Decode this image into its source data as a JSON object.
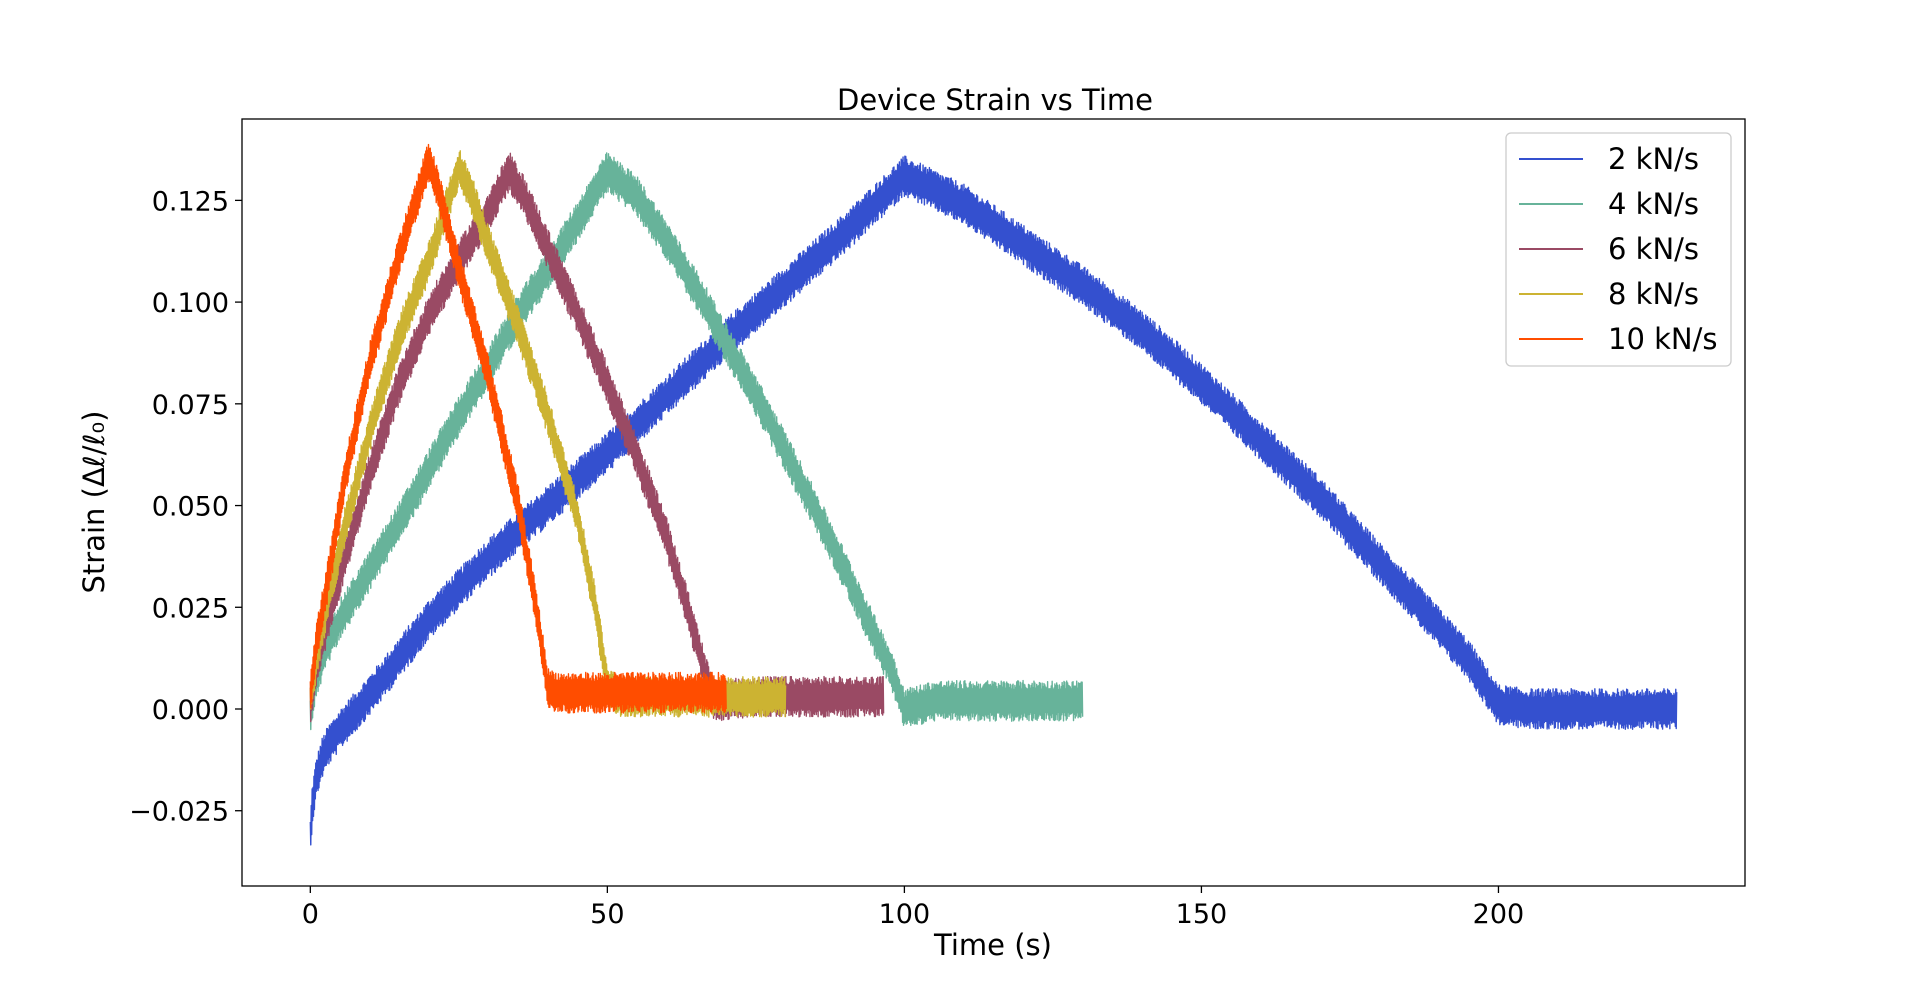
{
  "chart_data": {
    "type": "line",
    "title": "Device Strain vs Time",
    "xlabel": "Time (s)",
    "ylabel": "Strain (Δℓ/ℓ₀)",
    "xlim": [
      -11.5,
      241.5
    ],
    "ylim": [
      -0.0435,
      0.145
    ],
    "xticks": [
      0,
      50,
      100,
      150,
      200
    ],
    "xtick_labels": [
      "0",
      "50",
      "100",
      "150",
      "200"
    ],
    "yticks": [
      -0.025,
      0.0,
      0.025,
      0.05,
      0.075,
      0.1,
      0.125
    ],
    "ytick_labels": [
      "−0.025",
      "0.000",
      "0.025",
      "0.050",
      "0.075",
      "0.100",
      "0.125"
    ],
    "grid": false,
    "legend_position": "top-right",
    "noise_band": 0.005,
    "series": [
      {
        "name": "2 kN/s",
        "color": "#3450cf",
        "points": [
          [
            0,
            -0.032
          ],
          [
            0.3,
            -0.024
          ],
          [
            1,
            -0.017
          ],
          [
            2,
            -0.012
          ],
          [
            3,
            -0.009
          ],
          [
            5,
            -0.005
          ],
          [
            8,
            0.0
          ],
          [
            12,
            0.007
          ],
          [
            20,
            0.022
          ],
          [
            30,
            0.037
          ],
          [
            40,
            0.05
          ],
          [
            50,
            0.063
          ],
          [
            60,
            0.077
          ],
          [
            70,
            0.091
          ],
          [
            80,
            0.104
          ],
          [
            90,
            0.117
          ],
          [
            100,
            0.131
          ],
          [
            110,
            0.124
          ],
          [
            120,
            0.114
          ],
          [
            130,
            0.104
          ],
          [
            140,
            0.093
          ],
          [
            150,
            0.08
          ],
          [
            160,
            0.066
          ],
          [
            170,
            0.052
          ],
          [
            180,
            0.036
          ],
          [
            190,
            0.02
          ],
          [
            195,
            0.012
          ],
          [
            200,
            0.001
          ],
          [
            205,
            0.0
          ],
          [
            215,
            0.0
          ],
          [
            230,
            0.0
          ]
        ]
      },
      {
        "name": "4 kN/s",
        "color": "#67b39a",
        "points": [
          [
            0,
            -0.002
          ],
          [
            1,
            0.008
          ],
          [
            3,
            0.016
          ],
          [
            5,
            0.022
          ],
          [
            10,
            0.034
          ],
          [
            15,
            0.046
          ],
          [
            20,
            0.059
          ],
          [
            25,
            0.072
          ],
          [
            30,
            0.084
          ],
          [
            35,
            0.097
          ],
          [
            40,
            0.108
          ],
          [
            45,
            0.12
          ],
          [
            50,
            0.132
          ],
          [
            55,
            0.126
          ],
          [
            60,
            0.115
          ],
          [
            65,
            0.103
          ],
          [
            70,
            0.09
          ],
          [
            75,
            0.077
          ],
          [
            80,
            0.063
          ],
          [
            85,
            0.049
          ],
          [
            90,
            0.034
          ],
          [
            95,
            0.018
          ],
          [
            98,
            0.009
          ],
          [
            100,
            0.0
          ],
          [
            105,
            0.002
          ],
          [
            115,
            0.002
          ],
          [
            130,
            0.002
          ]
        ]
      },
      {
        "name": "6 kN/s",
        "color": "#9a4a64",
        "points": [
          [
            0,
            0.001
          ],
          [
            1,
            0.01
          ],
          [
            3,
            0.022
          ],
          [
            6,
            0.038
          ],
          [
            10,
            0.058
          ],
          [
            15,
            0.08
          ],
          [
            20,
            0.097
          ],
          [
            25,
            0.11
          ],
          [
            30,
            0.122
          ],
          [
            33.5,
            0.132
          ],
          [
            36,
            0.126
          ],
          [
            40,
            0.113
          ],
          [
            45,
            0.097
          ],
          [
            50,
            0.08
          ],
          [
            55,
            0.062
          ],
          [
            60,
            0.042
          ],
          [
            64,
            0.022
          ],
          [
            67,
            0.006
          ],
          [
            68,
            0.002
          ],
          [
            75,
            0.003
          ],
          [
            85,
            0.003
          ],
          [
            96.5,
            0.003
          ]
        ]
      },
      {
        "name": "8 kN/s",
        "color": "#ccb332",
        "points": [
          [
            0,
            0.002
          ],
          [
            1,
            0.012
          ],
          [
            3,
            0.027
          ],
          [
            5,
            0.04
          ],
          [
            10,
            0.068
          ],
          [
            15,
            0.092
          ],
          [
            20,
            0.11
          ],
          [
            25,
            0.133
          ],
          [
            27,
            0.127
          ],
          [
            30,
            0.114
          ],
          [
            35,
            0.094
          ],
          [
            40,
            0.072
          ],
          [
            45,
            0.047
          ],
          [
            48,
            0.025
          ],
          [
            50,
            0.006
          ],
          [
            52,
            0.003
          ],
          [
            60,
            0.003
          ],
          [
            70,
            0.003
          ],
          [
            80,
            0.003
          ]
        ]
      },
      {
        "name": "10 kN/s",
        "color": "#ff4d00",
        "points": [
          [
            0,
            0.003
          ],
          [
            1,
            0.016
          ],
          [
            3,
            0.032
          ],
          [
            6,
            0.058
          ],
          [
            10,
            0.085
          ],
          [
            15,
            0.112
          ],
          [
            20,
            0.135
          ],
          [
            22,
            0.125
          ],
          [
            25,
            0.108
          ],
          [
            30,
            0.082
          ],
          [
            35,
            0.05
          ],
          [
            38,
            0.025
          ],
          [
            40,
            0.005
          ],
          [
            42,
            0.004
          ],
          [
            55,
            0.004
          ],
          [
            70,
            0.004
          ]
        ]
      }
    ]
  }
}
